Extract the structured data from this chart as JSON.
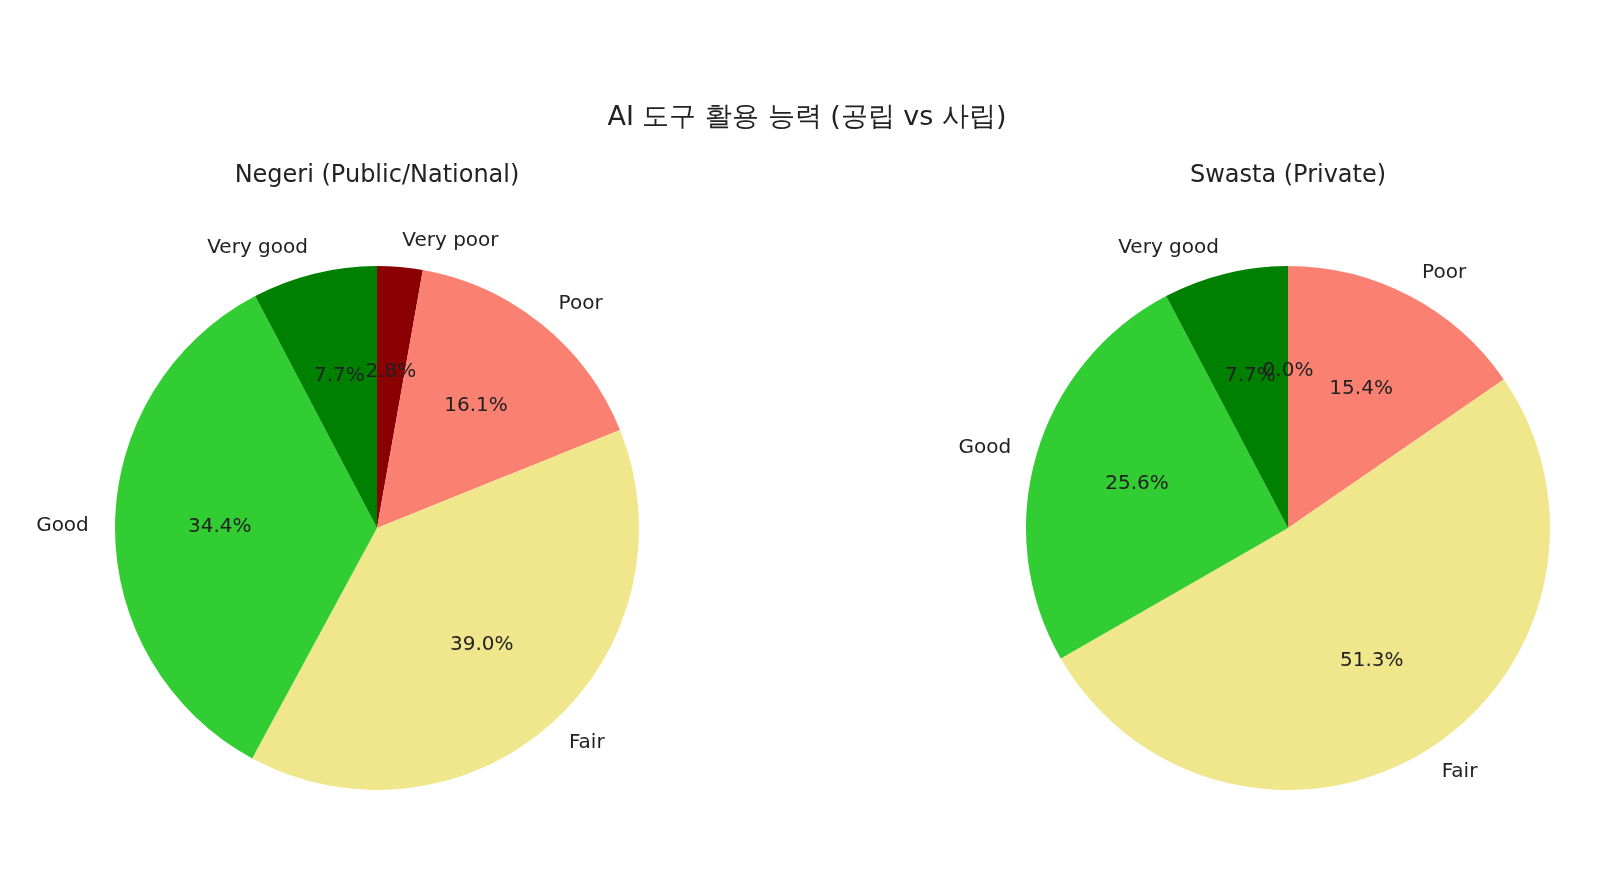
{
  "chart_data": [
    {
      "type": "pie",
      "title": "AI 도구 활용 능력 (공립 vs 사립)",
      "subtitle": "Negeri (Public/National)",
      "categories": [
        "Very poor",
        "Poor",
        "Fair",
        "Good",
        "Very good"
      ],
      "values": [
        2.8,
        16.1,
        39.0,
        34.4,
        7.7
      ],
      "value_labels": [
        "2.8%",
        "16.1%",
        "39.0%",
        "34.4%",
        "7.7%"
      ],
      "colors": [
        "#8b0000",
        "#fa8072",
        "#f0e68c",
        "#32cd32",
        "#008000"
      ],
      "legend": false
    },
    {
      "type": "pie",
      "subtitle": "Swasta (Private)",
      "categories": [
        null,
        "Poor",
        "Fair",
        "Good",
        "Very good"
      ],
      "values": [
        0.0,
        15.4,
        51.3,
        25.6,
        7.7
      ],
      "value_labels": [
        "0.0%",
        "15.4%",
        "51.3%",
        "25.6%",
        "7.7%"
      ],
      "colors": [
        "#8b0000",
        "#fa8072",
        "#f0e68c",
        "#32cd32",
        "#008000"
      ],
      "legend": false
    }
  ]
}
